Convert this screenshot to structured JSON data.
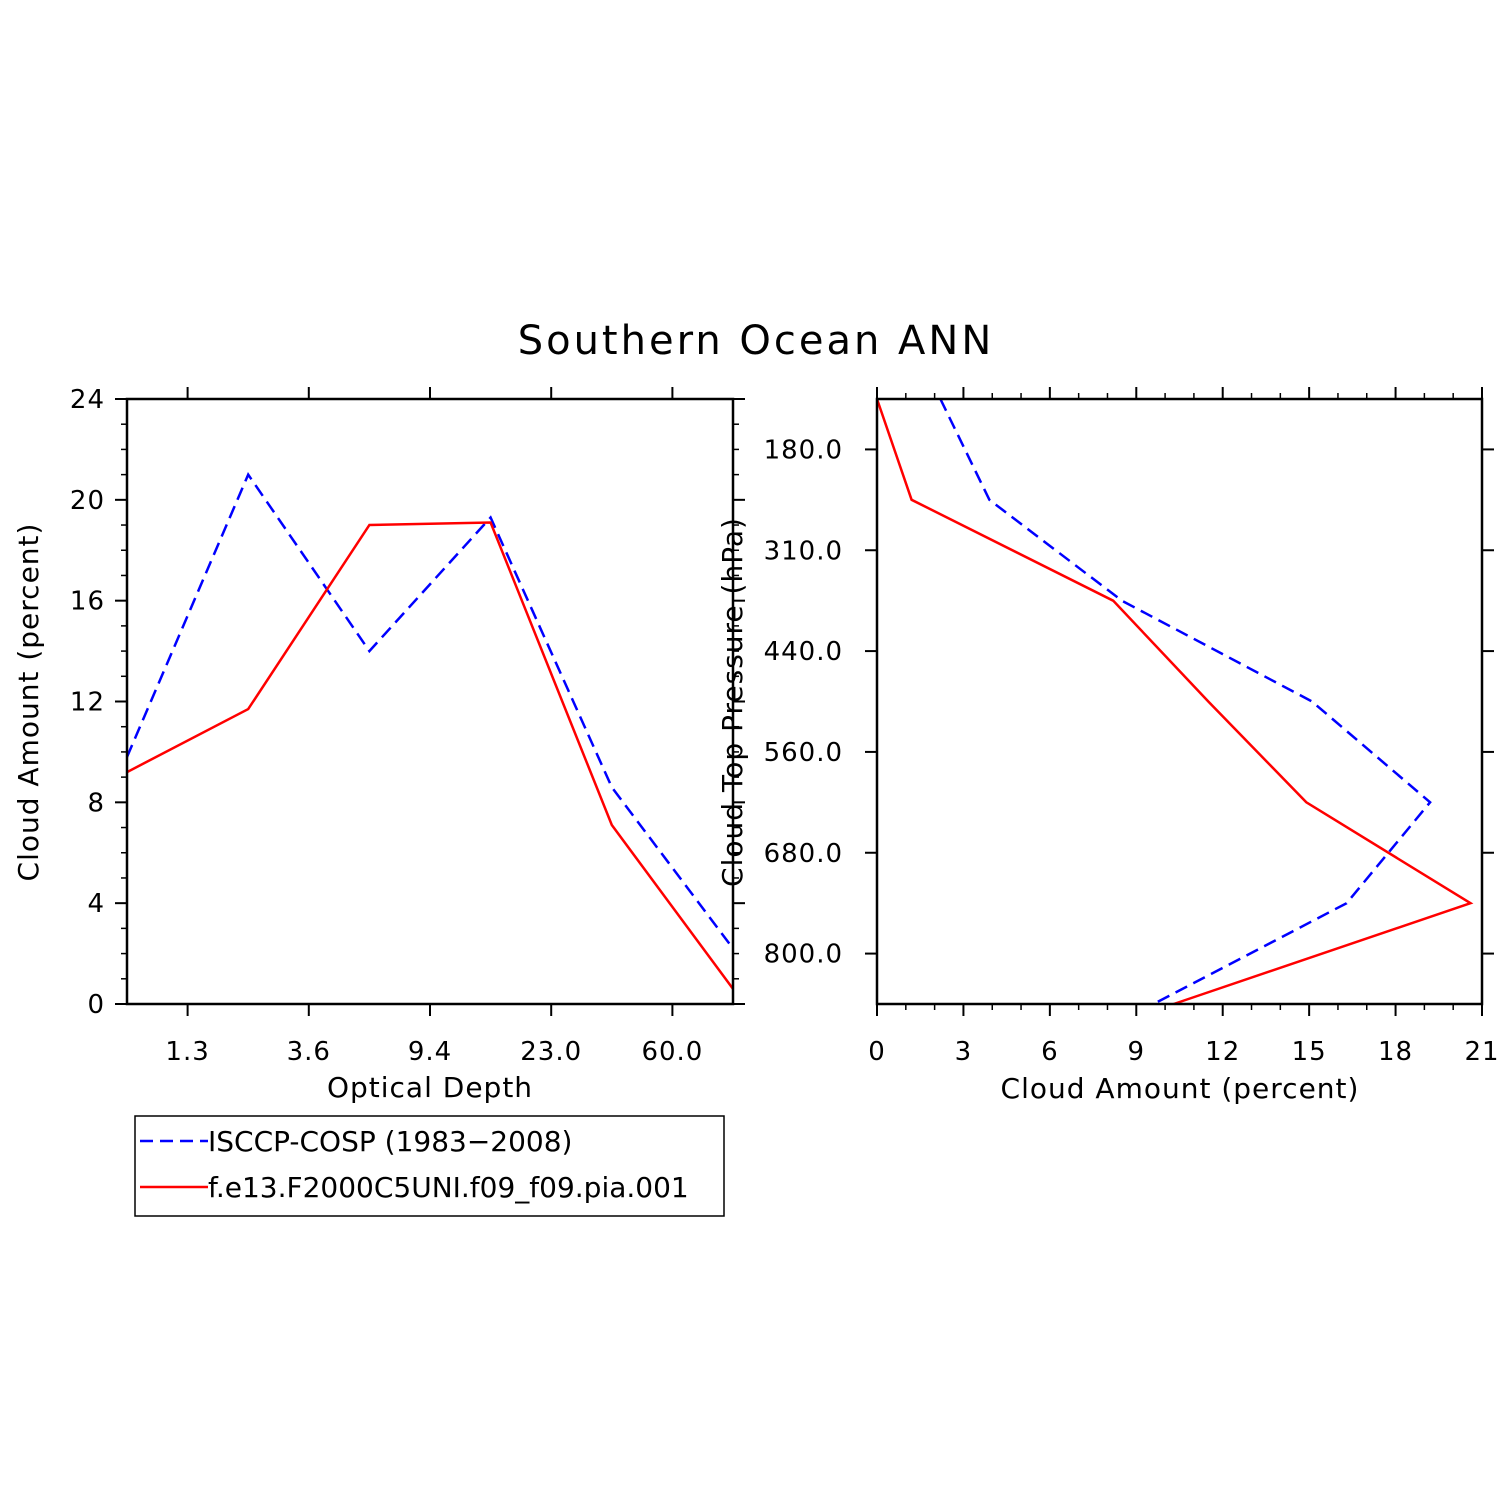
{
  "title": "Southern Ocean ANN",
  "colors": {
    "isccp": "#0000ff",
    "model": "#ff0000",
    "axes": "#000000"
  },
  "chart_data": [
    {
      "type": "line",
      "xlabel": "Optical Depth",
      "ylabel": "Cloud Amount (percent)",
      "x_tick_labels": [
        "1.3",
        "3.6",
        "9.4",
        "23.0",
        "60.0"
      ],
      "x_bins": 6,
      "ylim": [
        0,
        24
      ],
      "y_ticks": [
        0,
        4,
        8,
        12,
        16,
        20,
        24
      ],
      "grid": false,
      "series": [
        {
          "name": "ISCCP-COSP (1983-2008)",
          "color_key": "isccp",
          "dashed": true,
          "values": [
            9.8,
            21.0,
            14.0,
            19.3,
            8.6,
            2.2
          ]
        },
        {
          "name": "f.e13.F2000C5UNI.f09_f09.pia.001",
          "color_key": "model",
          "dashed": false,
          "values": [
            9.2,
            11.7,
            19.0,
            19.1,
            7.1,
            0.6
          ]
        }
      ]
    },
    {
      "type": "line",
      "xlabel": "Cloud Amount (percent)",
      "ylabel": "Cloud Top Pressure (hPa)",
      "xlim": [
        0,
        21
      ],
      "x_ticks": [
        0,
        3,
        6,
        9,
        12,
        15,
        18,
        21
      ],
      "y_tick_labels": [
        "180.0",
        "310.0",
        "440.0",
        "560.0",
        "680.0",
        "800.0"
      ],
      "y_bins": 6,
      "grid": false,
      "series": [
        {
          "name": "ISCCP-COSP (1983-2008)",
          "color_key": "isccp",
          "dashed": true,
          "values": [
            2.2,
            3.9,
            8.5,
            15.1,
            19.2,
            16.3,
            9.6
          ]
        },
        {
          "name": "f.e13.F2000C5UNI.f09_f09.pia.001",
          "color_key": "model",
          "dashed": false,
          "values": [
            0.0,
            1.2,
            8.2,
            11.5,
            14.9,
            20.6,
            10.3
          ]
        }
      ]
    }
  ],
  "legend": {
    "placement": "below-left",
    "entries": [
      {
        "label": "ISCCP-COSP (1983−2008)",
        "color_key": "isccp",
        "dashed": true
      },
      {
        "label": "f.e13.F2000C5UNI.f09_f09.pia.001",
        "color_key": "model",
        "dashed": false
      }
    ]
  }
}
